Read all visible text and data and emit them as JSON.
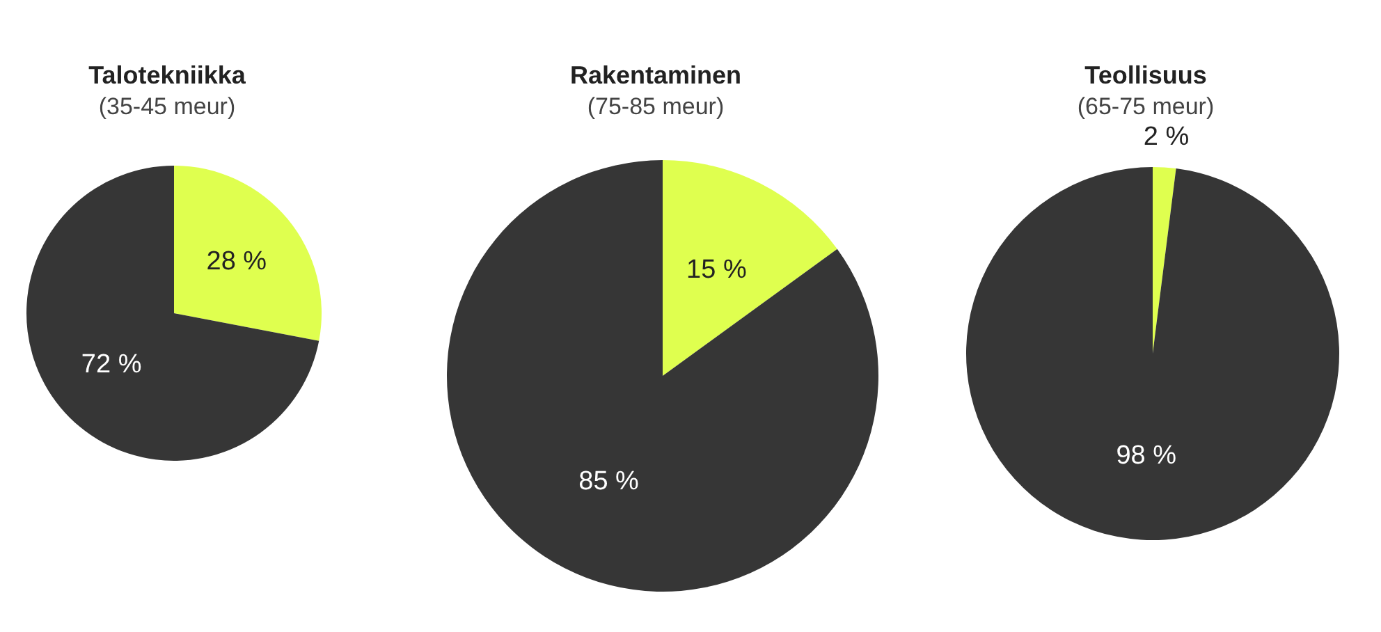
{
  "chart_data": [
    {
      "type": "pie",
      "title": "Talotekniikka",
      "subtitle": "(35-45 meur)",
      "categories": [
        null,
        null
      ],
      "values": [
        28,
        72
      ],
      "colors": [
        "#dfff4f",
        "#363636"
      ],
      "value_labels": [
        "28 %",
        "72 %"
      ],
      "legend": false
    },
    {
      "type": "pie",
      "title": "Rakentaminen",
      "subtitle": "(75-85 meur)",
      "categories": [
        null,
        null
      ],
      "values": [
        15,
        85
      ],
      "colors": [
        "#dfff4f",
        "#363636"
      ],
      "value_labels": [
        "15 %",
        "85 %"
      ],
      "legend": false
    },
    {
      "type": "pie",
      "title": "Teollisuus",
      "subtitle": "(65-75 meur)",
      "categories": [
        null,
        null
      ],
      "values": [
        2,
        98
      ],
      "colors": [
        "#dfff4f",
        "#363636"
      ],
      "value_labels": [
        "2 %",
        "98 %"
      ],
      "legend": false
    }
  ]
}
